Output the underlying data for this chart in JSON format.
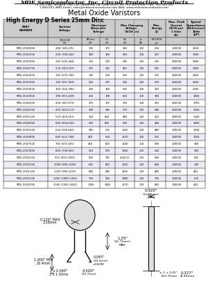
{
  "company": "MDE Semiconductor, Inc. Circuit Protection Products",
  "address": "78-150 Calle Tampico, Unit 216, La Quinta, CA., USA 92253 Tel: 760-564-6906 • Fax: 760-564-241",
  "address2": "1-800-831-4881 Email: sales@mdesemiconductor.com Web: www.mdesemiconductor.com",
  "title": "Metal Oxide Varistors",
  "section": "High Energy D Series 25mm Disc",
  "rows": [
    [
      "MDE-25D201K",
      "200 (180-225)",
      "130",
      "175",
      "340",
      "100",
      "200",
      "100000",
      "3500"
    ],
    [
      "MDE-25D221K",
      "220 (198-242)",
      "140",
      "180",
      "360",
      "100",
      "225",
      "100000",
      "3300"
    ],
    [
      "MDE-25D241K",
      "240 (216-264)",
      "150",
      "200",
      "395",
      "100",
      "235",
      "200000",
      "3000"
    ],
    [
      "MDE-25D271K",
      "270 (243-297)",
      "175",
      "225",
      "455",
      "100",
      "245",
      "200000",
      "2600"
    ],
    [
      "MDE-25D301K",
      "300 (270-330)",
      "195",
      "250",
      "505",
      "100",
      "255",
      "200000",
      "2400"
    ],
    [
      "MDE-25D331K",
      "330 (297-363)",
      "210",
      "275",
      "540",
      "100",
      "270",
      "200000",
      "2200"
    ],
    [
      "MDE-25D361K",
      "360 (324-396)",
      "230",
      "300",
      "595",
      "100",
      "315",
      "200000",
      "2000"
    ],
    [
      "MDE-25D391K",
      "390 (351-429)",
      "250",
      "330",
      "650",
      "100",
      "340",
      "200000",
      "1800"
    ],
    [
      "MDE-25D431K",
      "430 (387-473)",
      "275",
      "375",
      "710",
      "100",
      "355",
      "200000",
      "1750"
    ],
    [
      "MDE-25D471K",
      "470 (423-517)",
      "300",
      "385",
      "775",
      "100",
      "380",
      "200000",
      "1500"
    ],
    [
      "MDE-25D511K",
      "510 (459-561)",
      "320",
      "420",
      "840",
      "100",
      "422",
      "200000",
      "1500"
    ],
    [
      "MDE-25D561K",
      "560 (504-616)",
      "350",
      "450",
      "920",
      "100",
      "440",
      "100000",
      "1400"
    ],
    [
      "MDE-25D621K",
      "620 (558-682)",
      "385",
      "505",
      "1025",
      "100",
      "480",
      "100000",
      "1200"
    ],
    [
      "MDE-25D681K",
      "680 (612-748)",
      "420",
      "560",
      "1120",
      "100",
      "505",
      "100000",
      "1100"
    ],
    [
      "MDE-25D751K",
      "750 (675-825)",
      "460",
      "615",
      "1240",
      "100",
      "540",
      "100000",
      "980"
    ],
    [
      "MDE-25D781K",
      "820 (738-902)",
      "510",
      "670",
      "1350",
      "100",
      "560",
      "100000",
      "920"
    ],
    [
      "MDE-25D911K",
      "910 (819-1001)",
      "550",
      "745",
      "1545(1)",
      "100",
      "580",
      "100000",
      "860"
    ],
    [
      "MDE-25D101K",
      "1000 (900-1100)",
      "625",
      "825",
      "1650",
      "100",
      "680",
      "100000",
      "780"
    ],
    [
      "MDE-25D112K",
      "1100 (990-1210)",
      "680",
      "895",
      "1815",
      "100",
      "480",
      "100000",
      "450"
    ],
    [
      "MDE-25D122K",
      "1200 (1080-1320)",
      "750",
      "960",
      "1980",
      "100",
      "700",
      "100000",
      "500"
    ],
    [
      "MDE-25D152K",
      "1500 (1350-1650)",
      "1000",
      "1465",
      "2570",
      "100",
      "840",
      "100000",
      "420"
    ]
  ],
  "bg_color": "#ffffff"
}
